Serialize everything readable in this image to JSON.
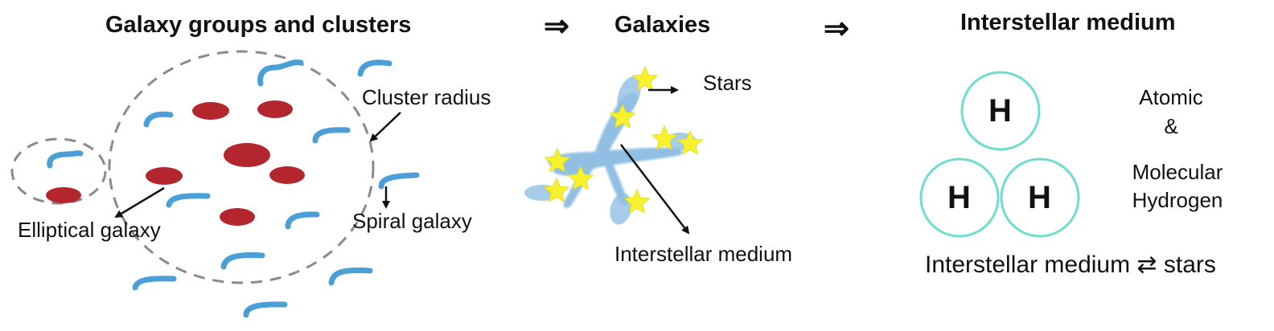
{
  "titles": {
    "clusters": "Galaxy groups and clusters",
    "galaxies": "Galaxies",
    "ism": "Interstellar medium"
  },
  "flow_arrows": [
    "⇒",
    "⇒"
  ],
  "cluster_panel": {
    "cluster_radius_label": "Cluster radius",
    "elliptical_label": "Elliptical galaxy",
    "spiral_label": "Spiral galaxy"
  },
  "galaxy_panel": {
    "stars_label": "Stars",
    "ism_label": "Interstellar medium"
  },
  "ism_panel": {
    "atom_symbol": "H",
    "atomic_label": "Atomic",
    "ampersand": "&",
    "molecular_label": "Molecular",
    "hydrogen_label": "Hydrogen",
    "footer_text": "Interstellar medium ⇄ stars"
  },
  "colors": {
    "elliptical": "#b3262e",
    "spiral": "#4a9fd6",
    "star": "#f8f22e",
    "gas": "#7db4df",
    "atom_ring": "#6fdcd0",
    "dashed": "#8a8a8a"
  }
}
